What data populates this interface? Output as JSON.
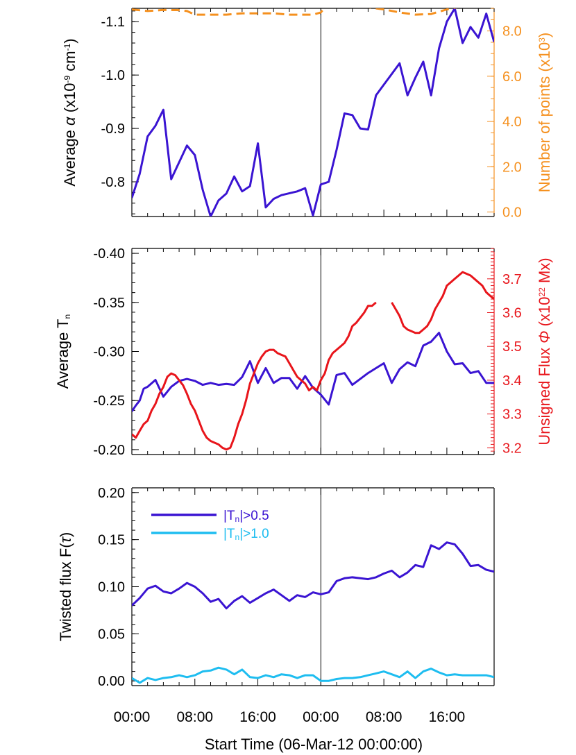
{
  "xlabel": "Start Time (06-Mar-12 00:00:00)",
  "x_tick_labels": [
    "00:00",
    "08:00",
    "16:00",
    "00:00",
    "08:00",
    "16:00"
  ],
  "chart_data": [
    {
      "type": "line",
      "panel": "top",
      "ylabel_left": [
        "Average ",
        "α",
        " (x10",
        "-9",
        " cm",
        "-1",
        ")"
      ],
      "ylabel_right": [
        "Number of points (x10",
        "3",
        ")"
      ],
      "x_range_hours": [
        0,
        46
      ],
      "y_left_range": [
        -0.735,
        -1.125
      ],
      "y_right_range": [
        -0.2,
        9.0
      ],
      "left_ticks": [
        "-1.1",
        "-1.0",
        "-0.9",
        "-0.8"
      ],
      "left_tick_values": [
        -1.1,
        -1.0,
        -0.9,
        -0.8
      ],
      "right_ticks": [
        "0.0",
        "2.0",
        "4.0",
        "6.0",
        "8.0"
      ],
      "right_tick_values": [
        0,
        2,
        4,
        6,
        8
      ],
      "vertical_marker_hours": 24,
      "colors": {
        "alpha": "#3a14d2",
        "points": "#f5901e"
      },
      "series": [
        {
          "axis": "left",
          "style": "solid",
          "x": [
            0,
            1,
            2,
            3,
            4,
            5,
            7,
            8,
            9,
            10,
            11,
            12,
            13,
            14,
            15,
            16,
            17,
            18,
            19,
            21,
            22,
            23,
            24,
            25,
            26,
            27,
            28,
            29,
            30,
            31,
            32,
            33,
            34,
            35,
            36,
            37,
            38,
            39,
            40,
            41,
            42,
            43,
            44,
            45,
            46
          ],
          "y": [
            -0.77,
            -0.815,
            -0.885,
            -0.905,
            -0.935,
            -0.805,
            -0.868,
            -0.85,
            -0.785,
            -0.735,
            -0.765,
            -0.778,
            -0.81,
            -0.782,
            -0.792,
            -0.872,
            -0.752,
            -0.768,
            -0.775,
            -0.782,
            -0.788,
            -0.737,
            -0.795,
            -0.8,
            -0.86,
            -0.928,
            -0.925,
            -0.9,
            -0.898,
            -0.962,
            -0.982,
            -1.002,
            -1.022,
            -0.962,
            -0.995,
            -1.025,
            -0.962,
            -1.05,
            -1.1,
            -1.125,
            -1.06,
            -1.09,
            -1.07,
            -1.115,
            -1.062
          ]
        },
        {
          "axis": "right",
          "style": "dashed",
          "x": [
            0,
            2,
            4,
            6,
            7,
            8,
            10,
            12,
            14,
            16,
            18,
            20,
            22,
            23,
            24,
            25,
            26,
            28,
            30,
            32,
            34,
            36,
            38,
            40,
            42,
            44,
            46
          ],
          "y": [
            8.95,
            8.88,
            8.93,
            8.92,
            8.88,
            8.72,
            8.72,
            8.72,
            8.78,
            8.78,
            8.78,
            8.72,
            8.72,
            8.72,
            8.82,
            9.25,
            9.15,
            9.05,
            9.05,
            8.95,
            8.82,
            8.72,
            8.75,
            8.95,
            9.1,
            9.15,
            9.15
          ]
        }
      ]
    },
    {
      "type": "line",
      "panel": "middle",
      "ylabel_left": [
        "Average T",
        "n"
      ],
      "ylabel_right": [
        "Unsigned Flux ",
        "Φ",
        " (x10",
        "22",
        " Mx)"
      ],
      "x_range_hours": [
        0,
        46
      ],
      "y_left_range": [
        -0.195,
        -0.405
      ],
      "y_right_range": [
        3.18,
        3.79
      ],
      "left_ticks": [
        "-0.40",
        "-0.35",
        "-0.30",
        "-0.25",
        "-0.20"
      ],
      "left_tick_values": [
        -0.4,
        -0.35,
        -0.3,
        -0.25,
        -0.2
      ],
      "right_ticks": [
        "3.2",
        "3.3",
        "3.4",
        "3.5",
        "3.6",
        "3.7"
      ],
      "right_tick_values": [
        3.2,
        3.3,
        3.4,
        3.5,
        3.6,
        3.7
      ],
      "vertical_marker_hours": 24,
      "colors": {
        "tn": "#3a14d2",
        "flux": "#e8151b"
      },
      "series": [
        {
          "axis": "left",
          "style": "solid",
          "x": [
            0,
            0.5,
            1,
            1.5,
            2,
            3,
            4,
            5,
            6,
            7,
            8,
            9,
            10,
            11,
            12,
            13,
            14,
            15,
            16,
            17,
            18,
            19,
            20,
            21,
            22,
            23,
            24,
            25,
            26,
            27,
            28,
            29,
            30,
            31,
            32,
            33,
            34,
            35,
            36,
            37,
            38,
            39,
            40,
            41,
            42,
            43,
            44,
            45,
            46
          ],
          "y": [
            -0.239,
            -0.245,
            -0.25,
            -0.262,
            -0.264,
            -0.271,
            -0.254,
            -0.264,
            -0.27,
            -0.272,
            -0.27,
            -0.266,
            -0.268,
            -0.266,
            -0.267,
            -0.266,
            -0.274,
            -0.29,
            -0.268,
            -0.283,
            -0.268,
            -0.273,
            -0.273,
            -0.262,
            -0.275,
            -0.263,
            -0.256,
            -0.246,
            -0.276,
            -0.278,
            -0.266,
            -0.272,
            -0.278,
            -0.283,
            -0.288,
            -0.268,
            -0.282,
            -0.289,
            -0.285,
            -0.306,
            -0.31,
            -0.319,
            -0.3,
            -0.287,
            -0.288,
            -0.278,
            -0.28,
            -0.268,
            -0.268
          ]
        },
        {
          "axis": "right",
          "style": "solid",
          "x": [
            0,
            0.5,
            1,
            1.5,
            2,
            2.5,
            3,
            3.5,
            4,
            4.5,
            5,
            5.5,
            6,
            6.5,
            7,
            7.5,
            8,
            8.5,
            9,
            9.5,
            10,
            10.5,
            11,
            11.5,
            12,
            12.5,
            13,
            13.5,
            14,
            14.5,
            15,
            15.5,
            16,
            16.5,
            17,
            17.5,
            18,
            18.5,
            19,
            19.5,
            20,
            20.5,
            21,
            21.5,
            22,
            22.5,
            23,
            23.5,
            24,
            24.5,
            25,
            25.5,
            26,
            26.5,
            27,
            27.5,
            28,
            28.5,
            29,
            29.5,
            30,
            30.5,
            31,
            null,
            33,
            33.5,
            34,
            34.5,
            35,
            35.5,
            36,
            36.5,
            37,
            37.5,
            38,
            38.5,
            39,
            39.5,
            40,
            40.5,
            41,
            41.5,
            42,
            42.5,
            43,
            43.5,
            44,
            44.5,
            45,
            45.5,
            46
          ],
          "y": [
            3.24,
            3.23,
            3.25,
            3.27,
            3.28,
            3.31,
            3.33,
            3.36,
            3.38,
            3.41,
            3.42,
            3.415,
            3.4,
            3.385,
            3.36,
            3.33,
            3.31,
            3.28,
            3.25,
            3.23,
            3.22,
            3.215,
            3.21,
            3.2,
            3.195,
            3.2,
            3.23,
            3.27,
            3.3,
            3.34,
            3.39,
            3.42,
            3.45,
            3.47,
            3.485,
            3.49,
            3.49,
            3.48,
            3.475,
            3.47,
            3.45,
            3.43,
            3.41,
            3.4,
            3.39,
            3.37,
            3.38,
            3.37,
            3.4,
            3.42,
            3.46,
            3.48,
            3.49,
            3.5,
            3.51,
            3.53,
            3.56,
            3.57,
            3.585,
            3.6,
            3.62,
            3.62,
            3.63,
            null,
            3.63,
            3.61,
            3.59,
            3.56,
            3.55,
            3.545,
            3.54,
            3.54,
            3.55,
            3.56,
            3.58,
            3.61,
            3.63,
            3.65,
            3.68,
            3.69,
            3.7,
            3.71,
            3.72,
            3.715,
            3.71,
            3.7,
            3.69,
            3.68,
            3.66,
            3.65,
            3.64
          ]
        }
      ]
    },
    {
      "type": "line",
      "panel": "bottom",
      "ylabel_left": [
        "Twisted flux F(",
        "τ",
        ")"
      ],
      "x_range_hours": [
        0,
        46
      ],
      "y_left_range": [
        -0.005,
        0.205
      ],
      "left_ticks": [
        "0.20",
        "0.15",
        "0.10",
        "0.05",
        "0.00"
      ],
      "left_tick_values": [
        0.2,
        0.15,
        0.1,
        0.05,
        0.0
      ],
      "vertical_marker_hours": 24,
      "legend": [
        {
          "pre": "|T",
          "sub": "n",
          "post": "|>0.5",
          "color": "#3a14d2"
        },
        {
          "pre": "|T",
          "sub": "n",
          "post": "|>1.0",
          "color": "#1ebdf0"
        }
      ],
      "legend_placement": "top-left",
      "series": [
        {
          "axis": "left",
          "style": "solid",
          "x": [
            0,
            1,
            2,
            3,
            4,
            5,
            6,
            7,
            8,
            9,
            10,
            11,
            12,
            13,
            14,
            15,
            16,
            17,
            18,
            19,
            20,
            21,
            22,
            23,
            24,
            25,
            26,
            27,
            28,
            29,
            30,
            31,
            32,
            33,
            34,
            35,
            36,
            37,
            38,
            39,
            40,
            41,
            42,
            43,
            44,
            45,
            46
          ],
          "y": [
            0.08,
            0.088,
            0.098,
            0.101,
            0.095,
            0.093,
            0.098,
            0.104,
            0.1,
            0.093,
            0.084,
            0.087,
            0.077,
            0.085,
            0.09,
            0.083,
            0.088,
            0.093,
            0.097,
            0.091,
            0.085,
            0.091,
            0.089,
            0.094,
            0.092,
            0.094,
            0.106,
            0.109,
            0.11,
            0.109,
            0.108,
            0.11,
            0.114,
            0.117,
            0.11,
            0.115,
            0.123,
            0.121,
            0.144,
            0.14,
            0.147,
            0.145,
            0.135,
            0.122,
            0.123,
            0.118,
            0.116
          ]
        },
        {
          "axis": "left",
          "style": "solid",
          "x": [
            0,
            1,
            2,
            3,
            4,
            5,
            6,
            7,
            8,
            9,
            10,
            11,
            12,
            13,
            14,
            15,
            16,
            17,
            18,
            19,
            20,
            21,
            22,
            23,
            24,
            25,
            26,
            27,
            28,
            29,
            30,
            31,
            32,
            33,
            34,
            35,
            36,
            37,
            38,
            39,
            40,
            41,
            42,
            43,
            44,
            45,
            46
          ],
          "y": [
            0.003,
            -0.002,
            0.003,
            0.001,
            0.003,
            0.004,
            0.006,
            0.004,
            0.006,
            0.01,
            0.011,
            0.014,
            0.012,
            0.007,
            0.012,
            0.004,
            0.003,
            0.006,
            0.004,
            0.007,
            0.006,
            0.003,
            0.006,
            0.006,
            0.0,
            0.0,
            0.002,
            0.003,
            0.003,
            0.004,
            0.006,
            0.008,
            0.01,
            0.007,
            0.004,
            0.01,
            0.003,
            0.01,
            0.013,
            0.009,
            0.006,
            0.007,
            0.006,
            0.006,
            0.006,
            0.006,
            0.004
          ]
        }
      ]
    }
  ]
}
